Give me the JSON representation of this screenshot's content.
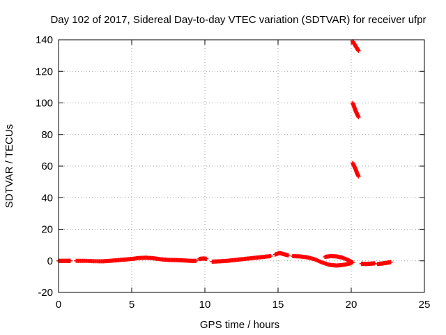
{
  "chart_data": {
    "type": "scatter",
    "title": "Day 102 of 2017, Sidereal Day-to-day VTEC variation (SDTVAR) for receiver ufpr",
    "xlabel": "GPS time / hours",
    "ylabel": "SDTVAR / TECUs",
    "xlim": [
      0,
      25
    ],
    "ylim": [
      -20,
      140
    ],
    "xticks": [
      0,
      5,
      10,
      15,
      20,
      25
    ],
    "yticks": [
      -20,
      0,
      20,
      40,
      60,
      80,
      100,
      120,
      140
    ],
    "grid": true,
    "series_color": "#ff0000",
    "marker": "plus",
    "series": [
      {
        "name": "SDTVAR",
        "segments": [
          {
            "x": [
              0.0,
              0.3,
              0.6,
              0.8
            ],
            "y": [
              0.0,
              0.0,
              0.0,
              0.0
            ]
          },
          {
            "x": [
              1.2,
              1.8,
              2.4,
              3.0,
              3.5,
              4.0,
              4.5,
              5.0,
              5.5,
              6.0,
              6.5,
              7.0,
              7.5,
              8.0,
              8.5,
              9.0,
              9.4
            ],
            "y": [
              0.0,
              0.0,
              -0.2,
              -0.3,
              0.0,
              0.4,
              0.8,
              1.2,
              1.8,
              2.0,
              1.6,
              1.0,
              0.6,
              0.5,
              0.3,
              0.0,
              0.0
            ]
          },
          {
            "x": [
              9.6,
              9.9,
              10.1
            ],
            "y": [
              1.2,
              1.5,
              1.3
            ]
          },
          {
            "x": [
              10.5,
              11.0,
              11.5,
              12.0,
              12.5,
              13.0,
              13.5,
              14.0,
              14.5
            ],
            "y": [
              -0.5,
              -0.3,
              0.0,
              0.5,
              1.0,
              1.5,
              2.0,
              2.5,
              3.0
            ]
          },
          {
            "x": [
              14.8,
              15.1,
              15.4,
              15.7
            ],
            "y": [
              4.0,
              5.0,
              4.2,
              3.5
            ]
          },
          {
            "x": [
              16.0,
              16.5,
              17.0,
              17.5,
              18.0,
              18.5,
              19.0,
              19.5,
              20.0
            ],
            "y": [
              3.0,
              2.8,
              2.2,
              1.0,
              -1.0,
              -2.5,
              -3.0,
              -2.5,
              -1.5
            ]
          },
          {
            "x": [
              18.2,
              18.6,
              19.0,
              19.4,
              19.8,
              20.1
            ],
            "y": [
              2.5,
              3.0,
              2.8,
              2.0,
              0.5,
              -1.0
            ]
          },
          {
            "x": [
              20.1,
              20.2,
              20.3,
              20.4,
              20.5
            ],
            "y": [
              139.0,
              137.5,
              136.0,
              134.5,
              133.0
            ]
          },
          {
            "x": [
              20.1,
              20.2,
              20.3,
              20.4,
              20.5
            ],
            "y": [
              100.0,
              97.5,
              95.0,
              93.0,
              91.0
            ]
          },
          {
            "x": [
              20.1,
              20.2,
              20.3,
              20.4,
              20.5
            ],
            "y": [
              62.0,
              60.0,
              58.0,
              55.5,
              53.5
            ]
          },
          {
            "x": [
              20.7,
              21.0,
              21.3,
              21.6
            ],
            "y": [
              -1.8,
              -2.0,
              -1.8,
              -1.6
            ]
          },
          {
            "x": [
              21.8,
              22.1,
              22.4,
              22.7
            ],
            "y": [
              -2.0,
              -1.7,
              -1.3,
              -0.8
            ]
          }
        ]
      }
    ]
  }
}
